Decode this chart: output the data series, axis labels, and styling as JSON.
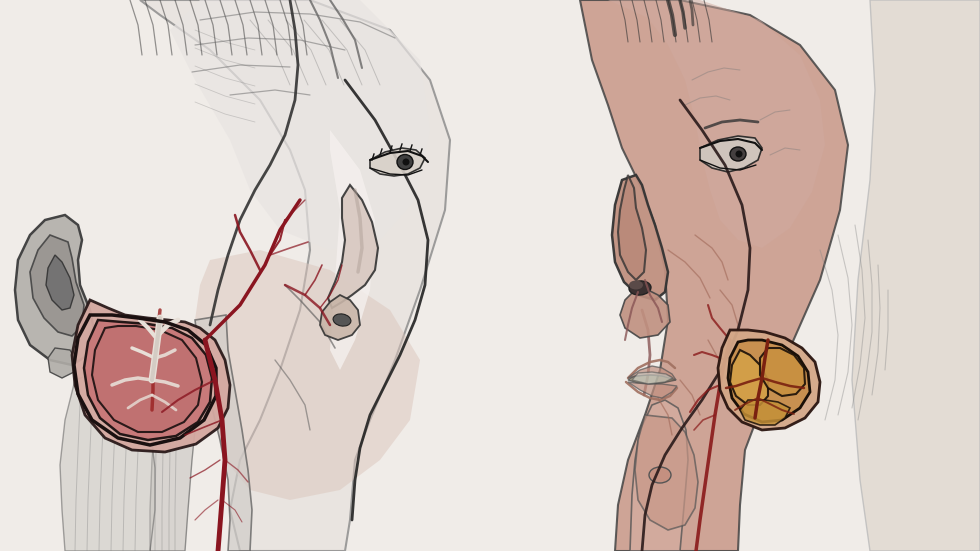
{
  "bg_color": "#eeebe6",
  "figure_width": 9.8,
  "figure_height": 5.51,
  "dpi": 100,
  "left_face": {
    "skin_light": "#e8e4e0",
    "skin_mid": "#d4c0b5",
    "skin_pink": "#d4a898",
    "ear_gray": "#b8b4b0",
    "ear_dark": "#888480",
    "turbinate_outer": "#d4908a",
    "turbinate_inner": "#c87070",
    "turbinate_bg": "#e0b0a8",
    "vessel_main": "#8a1520",
    "vessel_light": "#aa3030",
    "neck_color": "#c8bab0",
    "outline": "#1a1515",
    "muscle_gray": "#b0aba6",
    "jaw_muscle": "#c8c0b8"
  },
  "right_face": {
    "skin_warm": "#c89888",
    "skin_deep": "#b88070",
    "nose_color": "#c08878",
    "turbinate_surround": "#d4a090",
    "turbinate_tan": "#c8904a",
    "turbinate_orange": "#d4a040",
    "turbinate_dark": "#a06030",
    "vessel_red": "#8a1a1a",
    "outline": "#1a1515",
    "muscle_line": "#aa8070",
    "neck_pale": "#e0d8d0"
  }
}
